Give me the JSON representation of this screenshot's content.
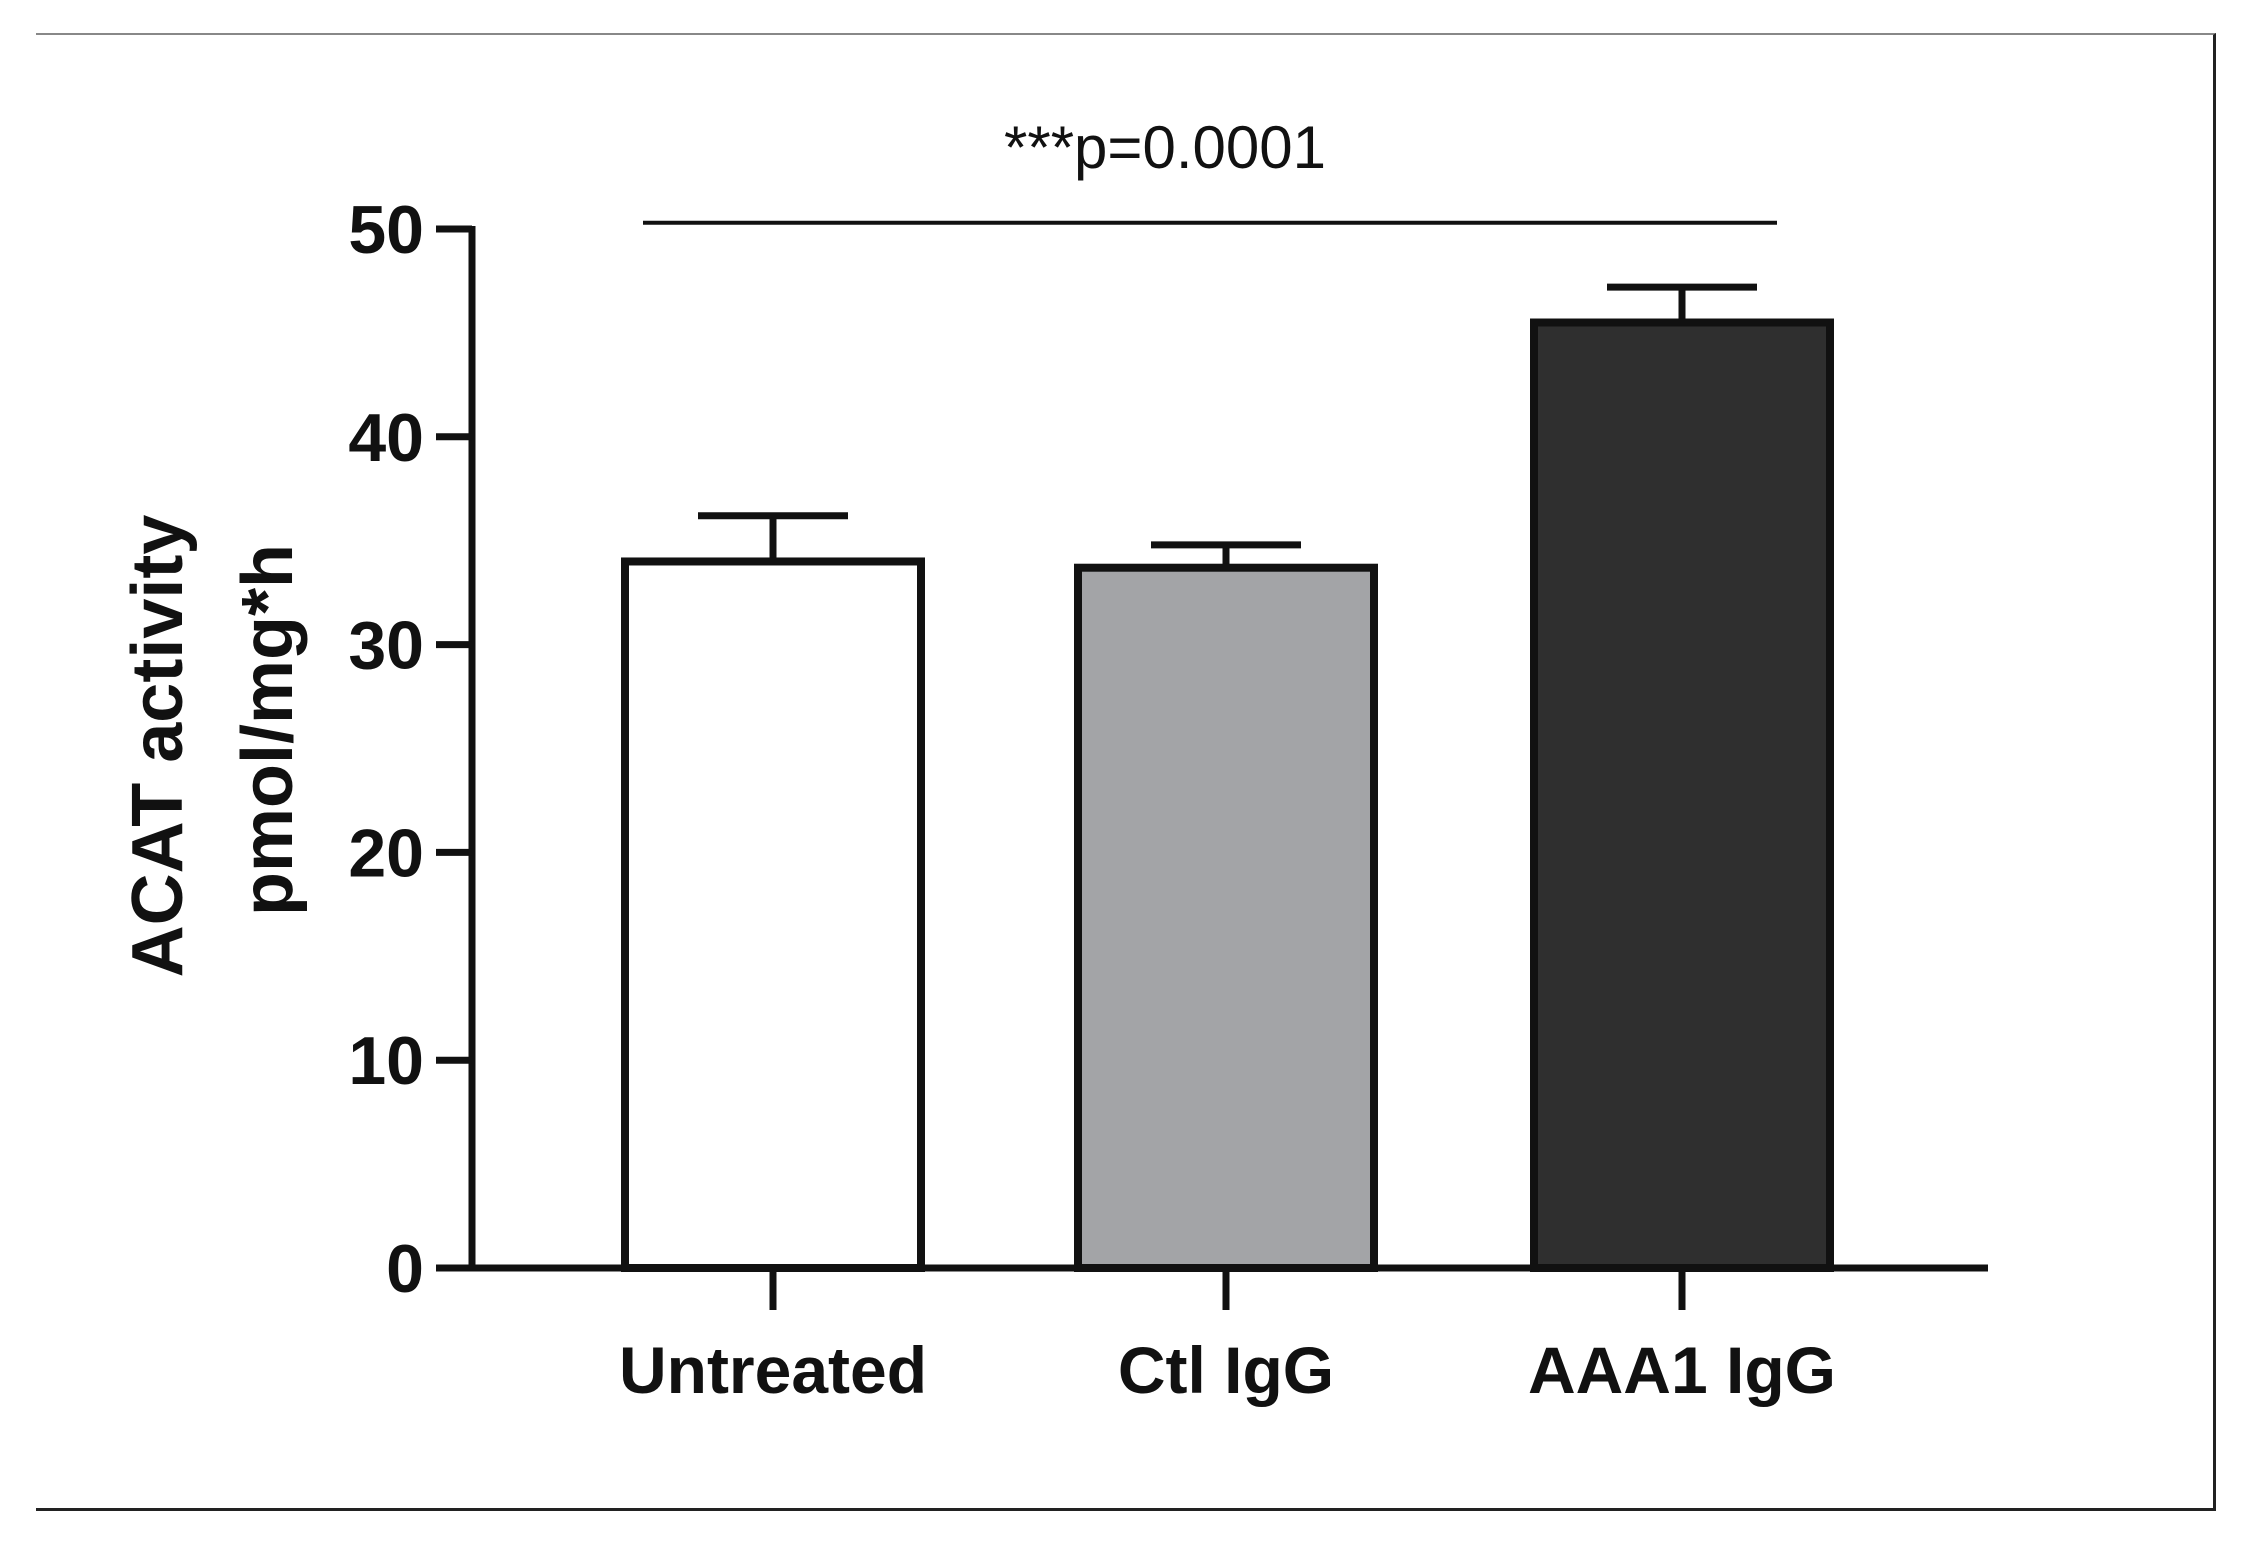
{
  "chart_data": {
    "type": "bar",
    "categories": [
      "Untreated",
      "Ctl IgG",
      "AAA1 IgG"
    ],
    "values": [
      34,
      33.7,
      45.5
    ],
    "errors": [
      2.2,
      1.1,
      1.7
    ],
    "bar_colors": [
      "#ffffff",
      "#a3a4a7",
      "#2f2f2f"
    ],
    "ylabel_lines": [
      "ACAT activity",
      "pmol/mg*h"
    ],
    "xlabel": "",
    "title": "",
    "ylim": [
      0,
      50
    ],
    "yticks": [
      0,
      10,
      20,
      30,
      40,
      50
    ],
    "grid": false,
    "significance": {
      "label": "***p=0.0001",
      "from_category": "Untreated",
      "to_category": "AAA1 IgG",
      "y_value": 50.3
    }
  }
}
